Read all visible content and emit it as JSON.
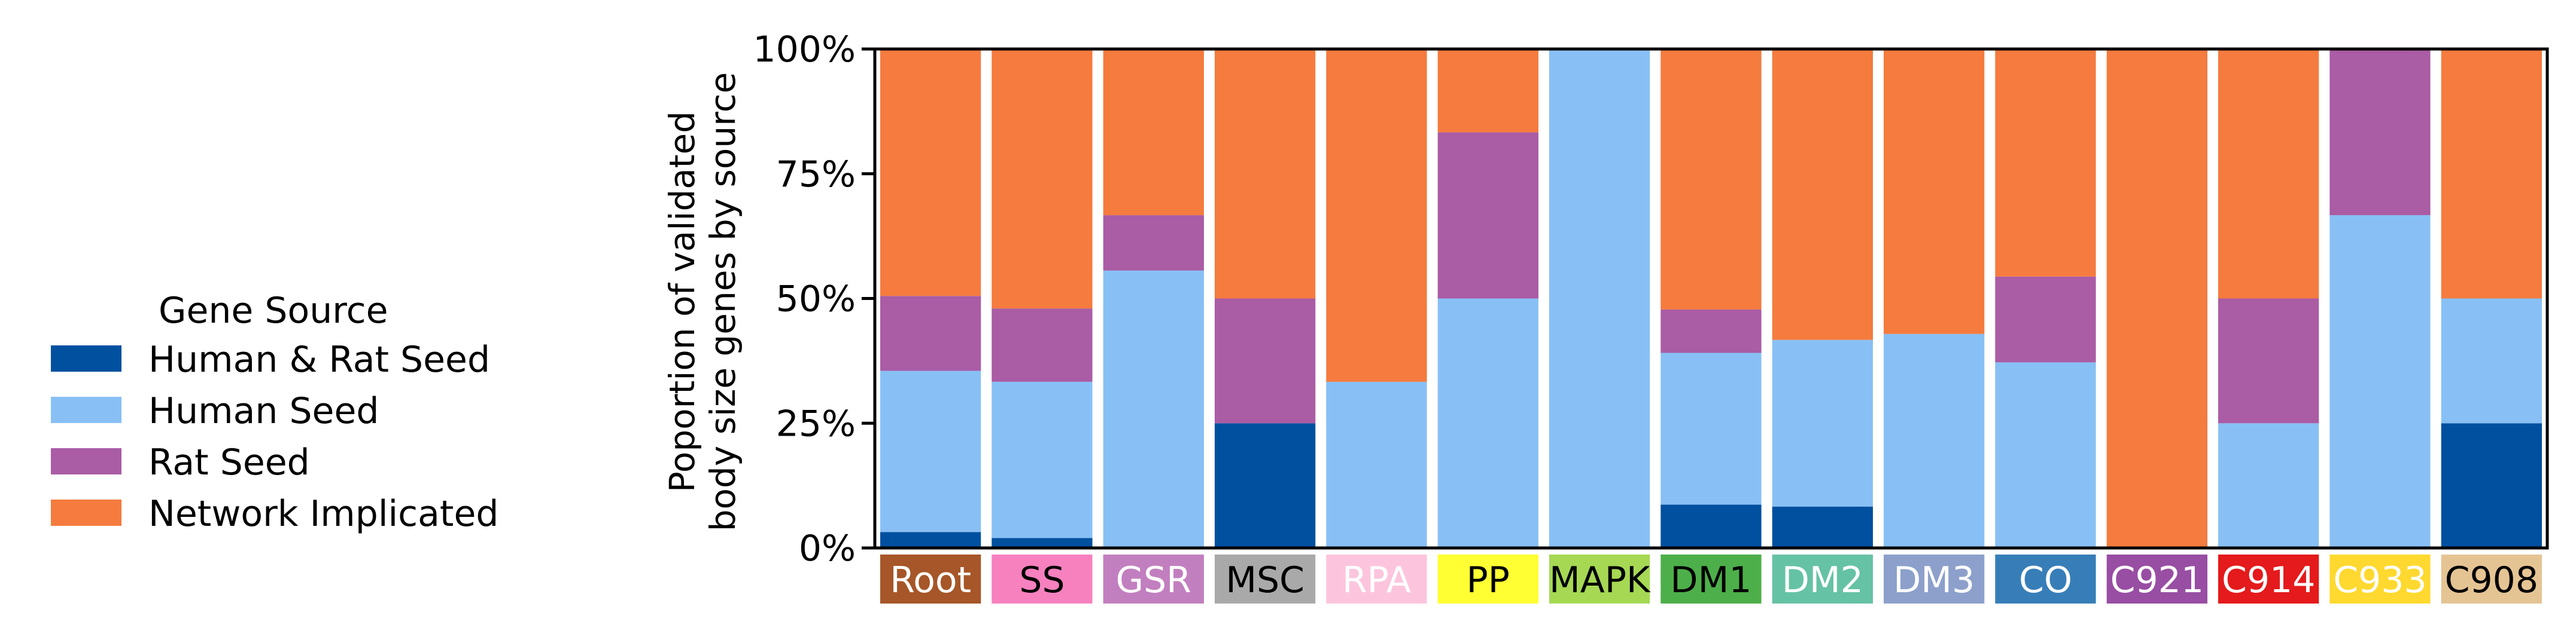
{
  "legend": {
    "title": "Gene Source",
    "items": [
      {
        "label": "Human & Rat Seed",
        "color": "#0050a0"
      },
      {
        "label": "Human Seed",
        "color": "#88c0f5"
      },
      {
        "label": "Rat Seed",
        "color": "#aa5ca5"
      },
      {
        "label": "Network Implicated",
        "color": "#f57b3e"
      }
    ]
  },
  "chart_data": {
    "type": "bar",
    "stacked": true,
    "ylabel_lines": [
      "Poportion of validated",
      "body size genes by source"
    ],
    "ylim": [
      0,
      1
    ],
    "yticks": [
      {
        "value": 0,
        "label": "0%"
      },
      {
        "value": 0.25,
        "label": "25%"
      },
      {
        "value": 0.5,
        "label": "50%"
      },
      {
        "value": 0.75,
        "label": "75%"
      },
      {
        "value": 1,
        "label": "100%"
      }
    ],
    "grid": false,
    "legend_placement": "left",
    "categories": [
      "Root",
      "SS",
      "GSR",
      "MSC",
      "RPA",
      "PP",
      "MAPK",
      "DM1",
      "DM2",
      "DM3",
      "CO",
      "C921",
      "C914",
      "C933",
      "C908"
    ],
    "category_colors": [
      "#a65628",
      "#f781bf",
      "#c27fbf",
      "#a9a9a9",
      "#fcc5dd",
      "#ffff33",
      "#a6d854",
      "#4daf4a",
      "#66c2a5",
      "#8da0cb",
      "#377eb8",
      "#984ea3",
      "#e41a1c",
      "#ffd92f",
      "#e5c494"
    ],
    "category_text_colors": [
      "#ffffff",
      "#000000",
      "#ffffff",
      "#000000",
      "#ffffff",
      "#000000",
      "#000000",
      "#000000",
      "#ffffff",
      "#ffffff",
      "#ffffff",
      "#ffffff",
      "#ffffff",
      "#ffffff",
      "#000000"
    ],
    "series": [
      {
        "name": "Human & Rat Seed",
        "color": "#0050a0",
        "values": [
          0.032,
          0.02,
          0,
          0.25,
          0,
          0,
          0,
          0.087,
          0.083,
          0,
          0,
          0,
          0,
          0,
          0.25
        ]
      },
      {
        "name": "Human Seed",
        "color": "#88c0f5",
        "values": [
          0.323,
          0.313,
          0.556,
          0,
          0.333,
          0.5,
          1,
          0.304,
          0.334,
          0.429,
          0.372,
          0,
          0.25,
          0.667,
          0.25
        ]
      },
      {
        "name": "Rat Seed",
        "color": "#aa5ca5",
        "values": [
          0.15,
          0.147,
          0.111,
          0.25,
          0,
          0.333,
          0,
          0.087,
          0,
          0,
          0.172,
          0,
          0.25,
          0.333,
          0
        ]
      },
      {
        "name": "Network Implicated",
        "color": "#f57b3e",
        "values": [
          0.495,
          0.52,
          0.333,
          0.5,
          0.667,
          0.167,
          0,
          0.522,
          0.583,
          0.571,
          0.456,
          1,
          0.5,
          0,
          0.5
        ]
      }
    ]
  }
}
